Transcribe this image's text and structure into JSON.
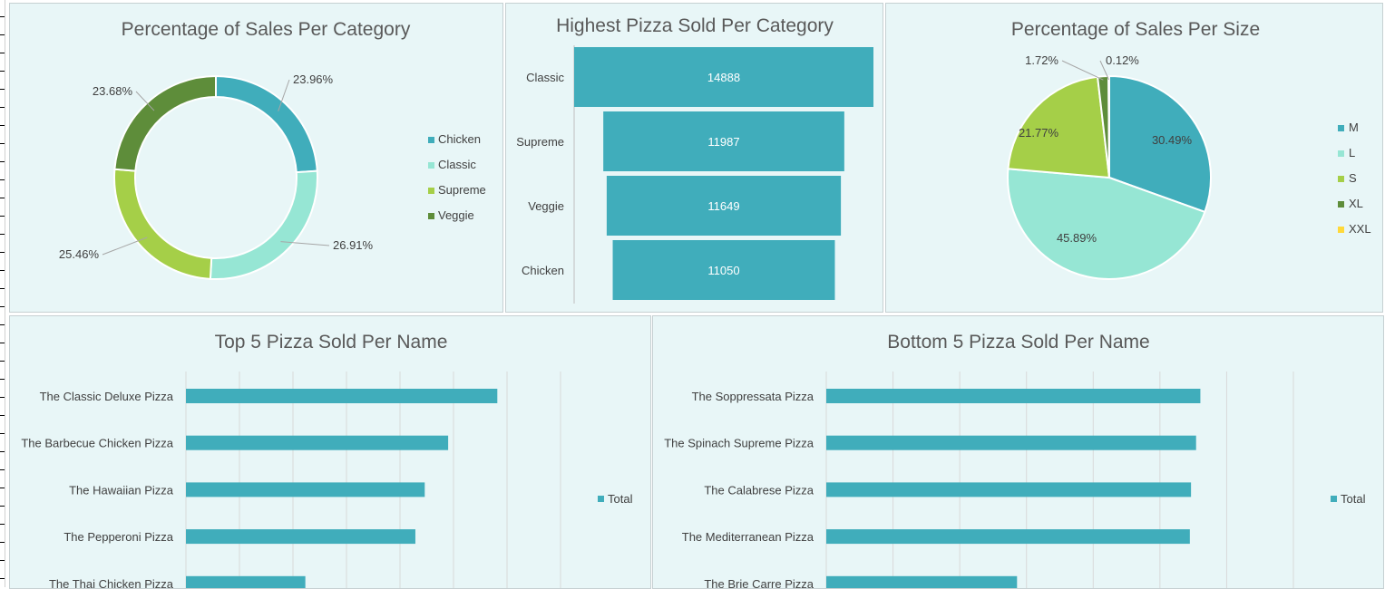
{
  "chart_data": [
    {
      "type": "pie",
      "variant": "donut",
      "title": "Percentage of Sales Per Category",
      "labels": [
        "Chicken",
        "Classic",
        "Supreme",
        "Veggie"
      ],
      "values": [
        23.96,
        26.91,
        25.46,
        23.68
      ],
      "value_labels": [
        "23.96%",
        "26.91%",
        "25.46%",
        "23.68%"
      ],
      "colors": [
        "#40adbb",
        "#96e6d4",
        "#a5cf48",
        "#5e8d3a"
      ],
      "legend": "right"
    },
    {
      "type": "bar",
      "variant": "funnel",
      "title": "Highest Pizza Sold Per Category",
      "categories": [
        "Classic",
        "Supreme",
        "Veggie",
        "Chicken"
      ],
      "values": [
        14888,
        11987,
        11649,
        11050
      ],
      "value_labels": [
        "14888",
        "11987",
        "11649",
        "11050"
      ],
      "color": "#40adbb"
    },
    {
      "type": "pie",
      "title": "Percentage of Sales Per Size",
      "labels": [
        "M",
        "L",
        "S",
        "XL",
        "XXL"
      ],
      "values": [
        30.49,
        45.89,
        21.77,
        1.72,
        0.12
      ],
      "value_labels": [
        "30.49%",
        "45.89%",
        "21.77%",
        "1.72%",
        "0.12%"
      ],
      "colors": [
        "#40adbb",
        "#96e6d4",
        "#a5cf48",
        "#5e8d3a",
        "#ffd93a"
      ],
      "legend": "right"
    },
    {
      "type": "bar",
      "orientation": "horizontal",
      "title": "Top 5 Pizza Sold Per Name",
      "categories": [
        "The Classic Deluxe Pizza",
        "The Barbecue Chicken Pizza",
        "The Hawaiian Pizza",
        "The Pepperoni Pizza",
        "The Thai Chicken Pizza"
      ],
      "series": [
        {
          "name": "Total",
          "values": [
            2453,
            2432,
            2422,
            2418,
            2371
          ]
        }
      ],
      "xlim": [
        2320,
        2480
      ],
      "grid": true,
      "legend": "right",
      "color": "#40adbb"
    },
    {
      "type": "bar",
      "orientation": "horizontal",
      "title": "Bottom 5 Pizza Sold Per Name",
      "categories": [
        "The Soppressata Pizza",
        "The Spinach Supreme Pizza",
        "The Calabrese Pizza",
        "The Mediterranean Pizza",
        "The Brie Carre Pizza"
      ],
      "series": [
        {
          "name": "Total",
          "values": [
            961,
            950,
            937,
            934,
            490
          ]
        }
      ],
      "xlim": [
        0,
        1200
      ],
      "grid": true,
      "legend": "right",
      "color": "#40adbb"
    }
  ]
}
